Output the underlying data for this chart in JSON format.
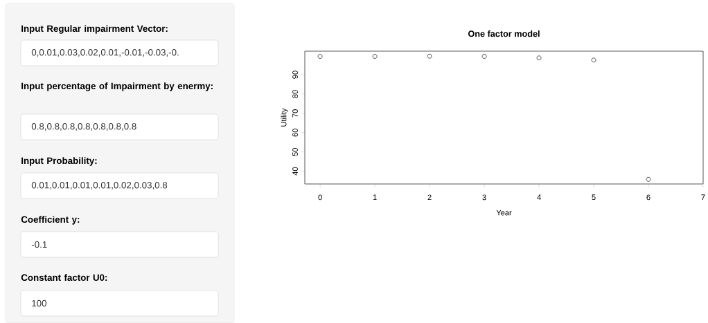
{
  "chart_data": [
    {
      "type": "other",
      "annotations": [
        "Input Regular impairment Vector:",
        "0,0.01,0.03,0.02,0.01,-0.01,-0.03,-0.",
        "Input percentage of Impairment by enermy:",
        "0.8,0.8,0.8,0.8,0.8,0.8,0.8",
        "Input Probability:",
        "0.01,0.01,0.01,0.01,0.02,0.03,0.8",
        "Coefficient y:",
        "-0.1",
        "Constant factor U0:",
        "100"
      ]
    },
    {
      "type": "scatter",
      "title": "One factor model",
      "xlabel": "Year",
      "ylabel": "Utility",
      "x": [
        0,
        1,
        2,
        3,
        4,
        5,
        6
      ],
      "values": [
        99.5,
        99.5,
        99.6,
        99.5,
        98.7,
        97.6,
        35.8
      ],
      "color": "#000000",
      "marker": "circle",
      "grid": false,
      "xlim": [
        -0.28,
        7.0
      ],
      "ylim": [
        33.4,
        102.2
      ],
      "xticks": [
        0,
        1,
        2,
        3,
        4,
        5,
        6,
        7
      ],
      "yticks": [
        40,
        50,
        60,
        70,
        80,
        90
      ]
    }
  ]
}
